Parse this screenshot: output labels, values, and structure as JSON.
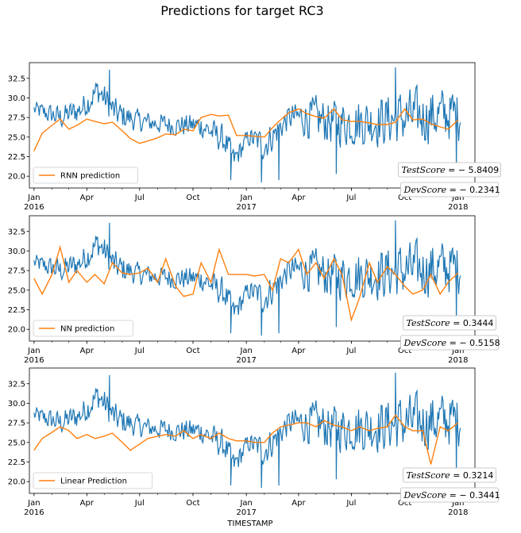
{
  "figure_title": "Predictions for target RC3",
  "x_axis_label": "TIMESTAMP",
  "colors": {
    "actual": "#1f77b4",
    "prediction": "#ff7f0e"
  },
  "chart_data": [
    {
      "type": "line",
      "legend": "RNN prediction",
      "legend_position": "lower-left",
      "xlim": [
        "2015-12-24",
        "2018-01-30"
      ],
      "ylim": [
        18.5,
        34.5
      ],
      "y_ticks": [
        "20.0",
        "22.5",
        "25.0",
        "27.5",
        "30.0",
        "32.5"
      ],
      "x_ticks": [
        {
          "date": "2016-01-01",
          "label": "Jan",
          "label2": "2016"
        },
        {
          "date": "2016-04-01",
          "label": "Apr"
        },
        {
          "date": "2016-07-01",
          "label": "Jul"
        },
        {
          "date": "2016-10-01",
          "label": "Oct"
        },
        {
          "date": "2017-01-01",
          "label": "Jan",
          "label2": "2017"
        },
        {
          "date": "2017-04-01",
          "label": "Apr"
        },
        {
          "date": "2017-07-01",
          "label": "Jul"
        },
        {
          "date": "2017-10-01",
          "label": "Oct"
        },
        {
          "date": "2018-01-01",
          "label": "Jan",
          "label2": "2018"
        }
      ],
      "test_score": {
        "name": "TestScore",
        "value": "5.8409",
        "negative": true
      },
      "dev_score": {
        "name": "DevScore",
        "value": "0.2341",
        "negative": true
      },
      "series": [
        {
          "name": "RNN prediction",
          "x": [
            "2016-01-01",
            "2016-01-15",
            "2016-02-01",
            "2016-02-15",
            "2016-03-01",
            "2016-03-15",
            "2016-04-01",
            "2016-04-15",
            "2016-05-01",
            "2016-05-15",
            "2016-06-01",
            "2016-06-15",
            "2016-07-01",
            "2016-07-15",
            "2016-08-01",
            "2016-08-15",
            "2016-09-01",
            "2016-09-15",
            "2016-10-01",
            "2016-10-15",
            "2016-11-01",
            "2016-11-15",
            "2016-12-01",
            "2016-12-15",
            "2017-01-01",
            "2017-01-15",
            "2017-02-01",
            "2017-02-15",
            "2017-03-01",
            "2017-03-15",
            "2017-04-01",
            "2017-04-15",
            "2017-05-01",
            "2017-05-15",
            "2017-06-01",
            "2017-06-15",
            "2017-07-01",
            "2017-07-15",
            "2017-08-01",
            "2017-08-15",
            "2017-09-01",
            "2017-09-15",
            "2017-10-01",
            "2017-10-15",
            "2017-11-01",
            "2017-11-15",
            "2017-12-01",
            "2017-12-15",
            "2018-01-01"
          ],
          "y": [
            23.2,
            25.5,
            26.5,
            27.3,
            26.0,
            26.5,
            27.3,
            27.0,
            26.7,
            26.9,
            25.8,
            24.8,
            24.2,
            24.5,
            24.9,
            25.4,
            25.3,
            26.0,
            25.8,
            27.5,
            27.9,
            27.7,
            27.8,
            25.2,
            25.2,
            25.1,
            25.0,
            26.2,
            27.2,
            28.1,
            28.6,
            28.0,
            27.6,
            27.4,
            28.6,
            27.2,
            27.0,
            27.0,
            26.8,
            26.6,
            26.6,
            26.9,
            28.6,
            27.2,
            27.3,
            26.7,
            26.3,
            26.0,
            27.2
          ]
        }
      ]
    },
    {
      "type": "line",
      "legend": "NN prediction",
      "legend_position": "lower-left",
      "xlim": [
        "2015-12-24",
        "2018-01-30"
      ],
      "ylim": [
        18.5,
        34.5
      ],
      "y_ticks": [
        "20.0",
        "22.5",
        "25.0",
        "27.5",
        "30.0",
        "32.5"
      ],
      "x_ticks": [
        {
          "date": "2016-01-01",
          "label": "Jan",
          "label2": "2016"
        },
        {
          "date": "2016-04-01",
          "label": "Apr"
        },
        {
          "date": "2016-07-01",
          "label": "Jul"
        },
        {
          "date": "2016-10-01",
          "label": "Oct"
        },
        {
          "date": "2017-01-01",
          "label": "Jan",
          "label2": "2017"
        },
        {
          "date": "2017-04-01",
          "label": "Apr"
        },
        {
          "date": "2017-07-01",
          "label": "Jul"
        },
        {
          "date": "2017-10-01",
          "label": "Oct"
        },
        {
          "date": "2018-01-01",
          "label": "Jan",
          "label2": "2018"
        }
      ],
      "test_score": {
        "name": "TestScore",
        "value": "0.3444",
        "negative": false
      },
      "dev_score": {
        "name": "DevScore",
        "value": "0.5158",
        "negative": true
      },
      "series": [
        {
          "name": "NN prediction",
          "x": [
            "2016-01-01",
            "2016-01-15",
            "2016-02-01",
            "2016-02-15",
            "2016-03-01",
            "2016-03-15",
            "2016-04-01",
            "2016-04-15",
            "2016-05-01",
            "2016-05-15",
            "2016-06-01",
            "2016-06-15",
            "2016-07-01",
            "2016-07-15",
            "2016-08-01",
            "2016-08-15",
            "2016-09-01",
            "2016-09-15",
            "2016-10-01",
            "2016-10-15",
            "2016-11-01",
            "2016-11-15",
            "2016-12-01",
            "2016-12-15",
            "2017-01-01",
            "2017-01-15",
            "2017-02-01",
            "2017-02-15",
            "2017-03-01",
            "2017-03-15",
            "2017-04-01",
            "2017-04-15",
            "2017-05-01",
            "2017-05-15",
            "2017-06-01",
            "2017-06-15",
            "2017-07-01",
            "2017-07-15",
            "2017-08-01",
            "2017-08-15",
            "2017-09-01",
            "2017-09-15",
            "2017-10-01",
            "2017-10-15",
            "2017-11-01",
            "2017-11-15",
            "2017-12-01",
            "2017-12-15",
            "2018-01-01"
          ],
          "y": [
            26.5,
            24.5,
            27.0,
            30.5,
            26.0,
            27.5,
            26.0,
            27.0,
            25.8,
            28.5,
            27.2,
            27.0,
            27.2,
            27.8,
            26.0,
            29.0,
            25.5,
            24.2,
            24.5,
            28.5,
            26.0,
            30.2,
            27.0,
            27.0,
            27.0,
            26.8,
            27.0,
            25.0,
            29.0,
            28.5,
            30.2,
            27.0,
            28.5,
            26.5,
            29.0,
            27.0,
            21.2,
            24.0,
            28.5,
            26.0,
            28.0,
            27.0,
            25.5,
            24.5,
            25.0,
            27.0,
            24.5,
            26.0,
            27.2
          ]
        }
      ]
    },
    {
      "type": "line",
      "legend": "Linear Prediction",
      "legend_position": "lower-left",
      "xlim": [
        "2015-12-24",
        "2018-01-30"
      ],
      "ylim": [
        18.5,
        34.5
      ],
      "y_ticks": [
        "20.0",
        "22.5",
        "25.0",
        "27.5",
        "30.0",
        "32.5"
      ],
      "x_ticks": [
        {
          "date": "2016-01-01",
          "label": "Jan",
          "label2": "2016"
        },
        {
          "date": "2016-04-01",
          "label": "Apr"
        },
        {
          "date": "2016-07-01",
          "label": "Jul"
        },
        {
          "date": "2016-10-01",
          "label": "Oct"
        },
        {
          "date": "2017-01-01",
          "label": "Jan",
          "label2": "2017"
        },
        {
          "date": "2017-04-01",
          "label": "Apr"
        },
        {
          "date": "2017-07-01",
          "label": "Jul"
        },
        {
          "date": "2017-10-01",
          "label": "Oct"
        },
        {
          "date": "2018-01-01",
          "label": "Jan",
          "label2": "2018"
        }
      ],
      "test_score": {
        "name": "TestScore",
        "value": "0.3214",
        "negative": false
      },
      "dev_score": {
        "name": "DevScore",
        "value": "0.3441",
        "negative": true
      },
      "series": [
        {
          "name": "Linear Prediction",
          "x": [
            "2016-01-01",
            "2016-01-15",
            "2016-02-01",
            "2016-02-15",
            "2016-03-01",
            "2016-03-15",
            "2016-04-01",
            "2016-04-15",
            "2016-05-01",
            "2016-05-15",
            "2016-06-01",
            "2016-06-15",
            "2016-07-01",
            "2016-07-15",
            "2016-08-01",
            "2016-08-15",
            "2016-09-01",
            "2016-09-15",
            "2016-10-01",
            "2016-10-15",
            "2016-11-01",
            "2016-11-15",
            "2016-12-01",
            "2016-12-15",
            "2017-01-01",
            "2017-01-15",
            "2017-02-01",
            "2017-02-15",
            "2017-03-01",
            "2017-03-15",
            "2017-04-01",
            "2017-04-15",
            "2017-05-01",
            "2017-05-15",
            "2017-06-01",
            "2017-06-15",
            "2017-07-01",
            "2017-07-15",
            "2017-08-01",
            "2017-08-15",
            "2017-09-01",
            "2017-09-15",
            "2017-10-01",
            "2017-10-15",
            "2017-11-01",
            "2017-11-15",
            "2017-12-01",
            "2017-12-15",
            "2018-01-01"
          ],
          "y": [
            24.0,
            25.5,
            26.3,
            27.0,
            26.5,
            25.5,
            26.0,
            25.5,
            25.8,
            26.2,
            25.0,
            24.0,
            24.8,
            25.5,
            25.8,
            26.0,
            25.8,
            26.5,
            25.5,
            26.0,
            25.5,
            26.2,
            25.5,
            25.2,
            25.2,
            25.0,
            25.0,
            26.2,
            27.0,
            27.2,
            27.5,
            27.5,
            27.0,
            27.8,
            27.2,
            27.0,
            26.5,
            27.0,
            26.5,
            26.8,
            27.0,
            28.5,
            27.0,
            26.5,
            26.5,
            22.2,
            27.0,
            26.5,
            27.5
          ]
        }
      ]
    }
  ]
}
